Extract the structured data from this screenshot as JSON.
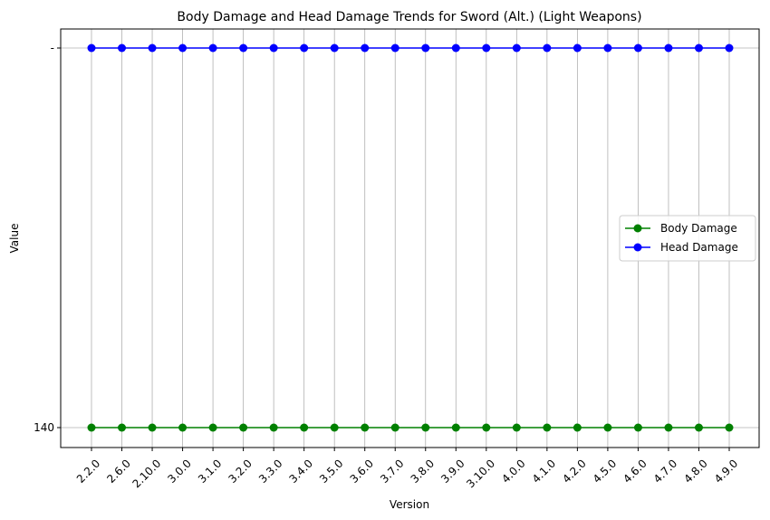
{
  "chart_data": {
    "type": "line",
    "title": "Body Damage and Head Damage Trends for Sword (Alt.) (Light Weapons)",
    "xlabel": "Version",
    "ylabel": "Value",
    "categories": [
      "2.2.0",
      "2.6.0",
      "2.10.0",
      "3.0.0",
      "3.1.0",
      "3.2.0",
      "3.3.0",
      "3.4.0",
      "3.5.0",
      "3.6.0",
      "3.7.0",
      "3.8.0",
      "3.9.0",
      "3.10.0",
      "4.0.0",
      "4.1.0",
      "4.2.0",
      "4.5.0",
      "4.6.0",
      "4.7.0",
      "4.8.0",
      "4.9.0"
    ],
    "y_categories": [
      "140",
      "-"
    ],
    "series": [
      {
        "name": "Body Damage",
        "color": "#008000",
        "values": [
          "140",
          "140",
          "140",
          "140",
          "140",
          "140",
          "140",
          "140",
          "140",
          "140",
          "140",
          "140",
          "140",
          "140",
          "140",
          "140",
          "140",
          "140",
          "140",
          "140",
          "140",
          "140"
        ]
      },
      {
        "name": "Head Damage",
        "color": "#0000ff",
        "values": [
          "-",
          "-",
          "-",
          "-",
          "-",
          "-",
          "-",
          "-",
          "-",
          "-",
          "-",
          "-",
          "-",
          "-",
          "-",
          "-",
          "-",
          "-",
          "-",
          "-",
          "-",
          "-"
        ]
      }
    ],
    "grid": true,
    "legend_position": "center-right"
  }
}
